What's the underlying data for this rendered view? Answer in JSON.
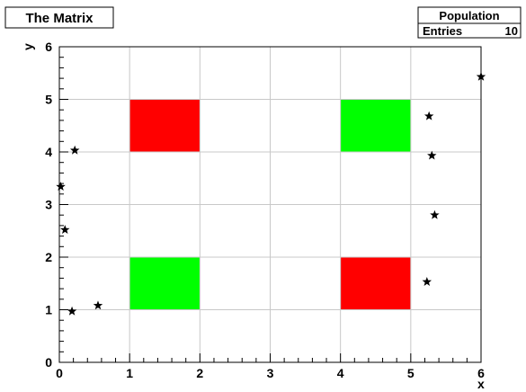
{
  "chart_data": {
    "type": "scatter",
    "title": "The Matrix",
    "xlabel": "x",
    "ylabel": "y",
    "xlim": [
      0,
      6
    ],
    "ylim": [
      0,
      6
    ],
    "grid": true,
    "x_ticks": [
      "0",
      "1",
      "2",
      "3",
      "4",
      "5",
      "6"
    ],
    "y_ticks": [
      "0",
      "1",
      "2",
      "3",
      "4",
      "5",
      "6"
    ],
    "stats_box": {
      "title": "Population",
      "entries_label": "Entries",
      "entries_value": "10"
    },
    "cells": [
      {
        "x": [
          1,
          2
        ],
        "y": [
          4,
          5
        ],
        "color": "#ff0000"
      },
      {
        "x": [
          4,
          5
        ],
        "y": [
          4,
          5
        ],
        "color": "#00ff00"
      },
      {
        "x": [
          1,
          2
        ],
        "y": [
          1,
          2
        ],
        "color": "#00ff00"
      },
      {
        "x": [
          4,
          5
        ],
        "y": [
          1,
          2
        ],
        "color": "#ff0000"
      }
    ],
    "points": [
      {
        "x": 0.18,
        "y": 0.97
      },
      {
        "x": 0.55,
        "y": 1.08
      },
      {
        "x": 0.08,
        "y": 2.52
      },
      {
        "x": 0.02,
        "y": 3.34
      },
      {
        "x": 0.22,
        "y": 4.03
      },
      {
        "x": 5.23,
        "y": 1.53
      },
      {
        "x": 5.34,
        "y": 2.8
      },
      {
        "x": 5.3,
        "y": 3.93
      },
      {
        "x": 5.26,
        "y": 4.68
      },
      {
        "x": 6.0,
        "y": 5.43
      }
    ],
    "marker": "star",
    "marker_color": "#000000",
    "grid_color": "#c8c8c8"
  }
}
